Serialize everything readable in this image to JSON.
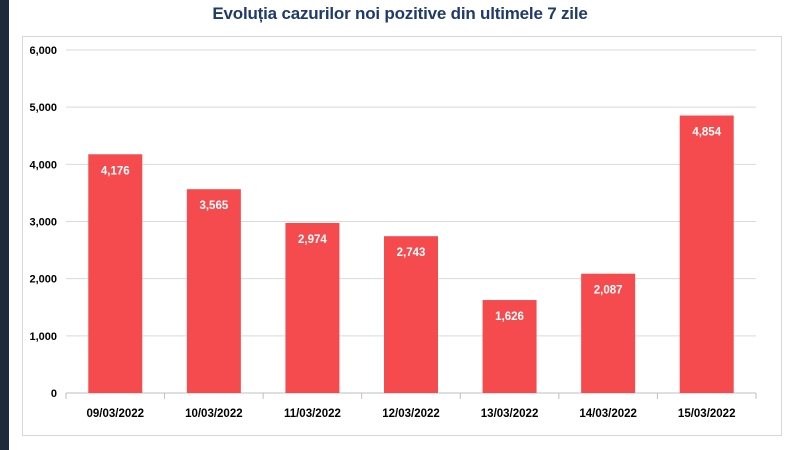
{
  "chart_data": {
    "type": "bar",
    "title": "Evoluția cazurilor noi pozitive din ultimele 7 zile",
    "categories": [
      "09/03/2022",
      "10/03/2022",
      "11/03/2022",
      "12/03/2022",
      "13/03/2022",
      "14/03/2022",
      "15/03/2022"
    ],
    "values": [
      4176,
      3565,
      2974,
      2743,
      1626,
      2087,
      4854
    ],
    "data_labels": [
      "4,176",
      "3,565",
      "2,974",
      "2,743",
      "1,626",
      "2,087",
      "4,854"
    ],
    "yticks": [
      0,
      1000,
      2000,
      3000,
      4000,
      5000,
      6000
    ],
    "ytick_labels": [
      "0",
      "1,000",
      "2,000",
      "3,000",
      "4,000",
      "5,000",
      "6,000"
    ],
    "ylim": [
      0,
      6000
    ],
    "grid": true,
    "legend": "none",
    "xlabel": "",
    "ylabel": "",
    "colors": {
      "bar": "#f54b4e",
      "title": "#1f3a6b",
      "grid": "#d9d9d9"
    }
  }
}
